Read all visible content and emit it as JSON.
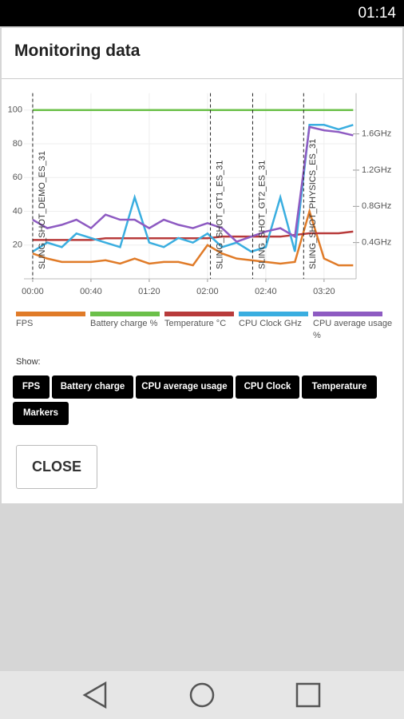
{
  "status_bar": {
    "time": "01:14"
  },
  "dialog": {
    "title": "Monitoring data",
    "show_label": "Show:",
    "buttons": [
      "FPS",
      "Battery charge",
      "CPU average usage",
      "CPU Clock",
      "Temperature",
      "Markers"
    ],
    "close": "CLOSE"
  },
  "chart_data": {
    "type": "line",
    "x": [
      0,
      10,
      20,
      30,
      40,
      50,
      60,
      70,
      80,
      90,
      100,
      110,
      120,
      130,
      140,
      150,
      160,
      170,
      180,
      190,
      200,
      210,
      220
    ],
    "xlim": [
      -6,
      222
    ],
    "xticks": [
      {
        "value": 0,
        "label": "00:00"
      },
      {
        "value": 40,
        "label": "00:40"
      },
      {
        "value": 80,
        "label": "01:20"
      },
      {
        "value": 120,
        "label": "02:00"
      },
      {
        "value": 160,
        "label": "02:40"
      },
      {
        "value": 200,
        "label": "03:20"
      }
    ],
    "ylim": [
      0,
      110
    ],
    "yticks": [
      20,
      40,
      60,
      80,
      100
    ],
    "y2lim": [
      0,
      2.05
    ],
    "y2ticks": [
      {
        "value": 0.4,
        "label": "0.4GHz"
      },
      {
        "value": 0.8,
        "label": "0.8GHz"
      },
      {
        "value": 1.2,
        "label": "1.2GHz"
      },
      {
        "value": 1.6,
        "label": "1.6GHz"
      }
    ],
    "grid": true,
    "markers": [
      {
        "x": 0,
        "label": "SLING_SHOT_DEMO_ES_31"
      },
      {
        "x": 122,
        "label": "SLING_SHOT_GT1_ES_31"
      },
      {
        "x": 151,
        "label": "SLING_SHOT_GT2_ES_31"
      },
      {
        "x": 186,
        "label": "SLING_SHOT_PHYSICS_ES_31"
      }
    ],
    "series": [
      {
        "name": "FPS",
        "color": "#e07b28",
        "values": [
          15,
          12,
          10,
          10,
          10,
          11,
          9,
          12,
          9,
          10,
          10,
          8,
          20,
          15,
          12,
          11,
          10,
          9,
          10,
          40,
          12,
          8,
          8
        ]
      },
      {
        "name": "Battery charge %",
        "color": "#6cc04a",
        "values": [
          100,
          100,
          100,
          100,
          100,
          100,
          100,
          100,
          100,
          100,
          100,
          100,
          100,
          100,
          100,
          100,
          100,
          100,
          100,
          100,
          100,
          100,
          100
        ]
      },
      {
        "name": "Temperature °C",
        "color": "#b83b3b",
        "values": [
          23,
          23,
          23,
          23,
          23,
          24,
          24,
          24,
          24,
          24,
          24,
          24,
          24,
          25,
          25,
          25,
          25,
          25,
          26,
          27,
          27,
          27,
          28
        ]
      },
      {
        "name": "CPU Clock GHz",
        "color": "#3aaee0",
        "axis": "y2",
        "values": [
          0.3,
          0.4,
          0.35,
          0.5,
          0.45,
          0.4,
          0.35,
          0.9,
          0.4,
          0.35,
          0.45,
          0.4,
          0.5,
          0.35,
          0.4,
          0.3,
          0.35,
          0.9,
          0.3,
          1.7,
          1.7,
          1.65,
          1.7
        ]
      },
      {
        "name": "CPU average usage %",
        "color": "#8e5bc2",
        "values": [
          35,
          30,
          32,
          35,
          30,
          38,
          35,
          35,
          30,
          35,
          32,
          30,
          33,
          30,
          22,
          25,
          28,
          30,
          25,
          90,
          88,
          87,
          85
        ]
      }
    ]
  }
}
